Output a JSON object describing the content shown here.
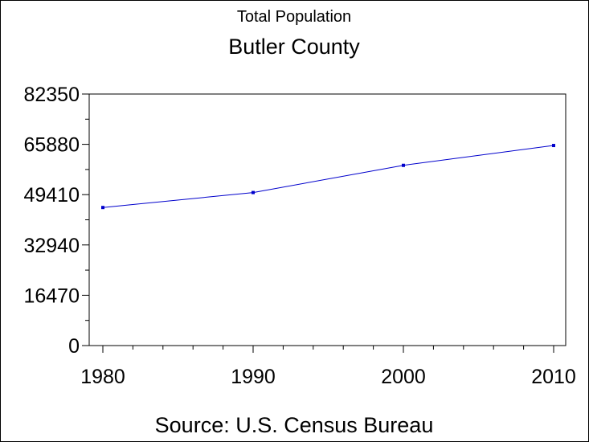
{
  "chart_data": {
    "type": "line",
    "subtitle": "Total Population",
    "title": "Butler County",
    "footnote": "Source: U.S. Census Bureau",
    "x": [
      1980,
      1990,
      2000,
      2010
    ],
    "series": [
      {
        "values": [
          45200,
          50100,
          59000,
          65500
        ],
        "color": "#0000cc"
      }
    ],
    "xticks": [
      "1980",
      "1990",
      "2000",
      "2010"
    ],
    "yticks": [
      "0",
      "16470",
      "32940",
      "49410",
      "65880",
      "82350"
    ],
    "xlim": [
      1980,
      2010
    ],
    "ylim": [
      0,
      82350
    ],
    "grid": false,
    "legend": "none"
  }
}
